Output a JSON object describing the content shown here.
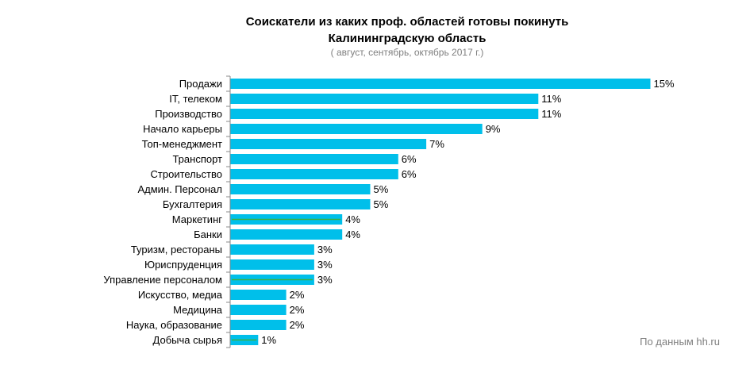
{
  "chart_data": {
    "type": "bar",
    "orientation": "horizontal",
    "title_line1": "Соискатели из каких проф. областей готовы  покинуть",
    "title_line2": "Калининградскую область",
    "subtitle": "( август, сентябрь, октябрь 2017 г.)",
    "categories": [
      "Продажи",
      "IT, телеком",
      "Производство",
      "Начало карьеры",
      "Топ-менеджмент",
      "Транспорт",
      "Строительство",
      "Админ. Персонал",
      "Бухгалтерия",
      "Маркетинг",
      "Банки",
      "Туризм,  рестораны",
      "Юриспруденция",
      "Управление  персоналом",
      "Искусство, медиа",
      "Медицина",
      "Наука, образование",
      "Добыча сырья"
    ],
    "values": [
      15,
      11,
      11,
      9,
      7,
      6,
      6,
      5,
      5,
      4,
      4,
      3,
      3,
      3,
      2,
      2,
      2,
      1
    ],
    "value_labels": [
      "15%",
      "11%",
      "11%",
      "9%",
      "7%",
      "6%",
      "6%",
      "5%",
      "5%",
      "4%",
      "4%",
      "3%",
      "3%",
      "3%",
      "2%",
      "2%",
      "2%",
      "1%"
    ],
    "highlighted": [
      false,
      false,
      false,
      false,
      false,
      false,
      false,
      false,
      false,
      true,
      false,
      false,
      false,
      true,
      false,
      false,
      false,
      true
    ],
    "bar_color": "#00bfea",
    "highlight_line_color": "#3cb043",
    "axis_color": "#888888",
    "grid": false,
    "legend": "none"
  },
  "source": "По данным  hh.ru"
}
